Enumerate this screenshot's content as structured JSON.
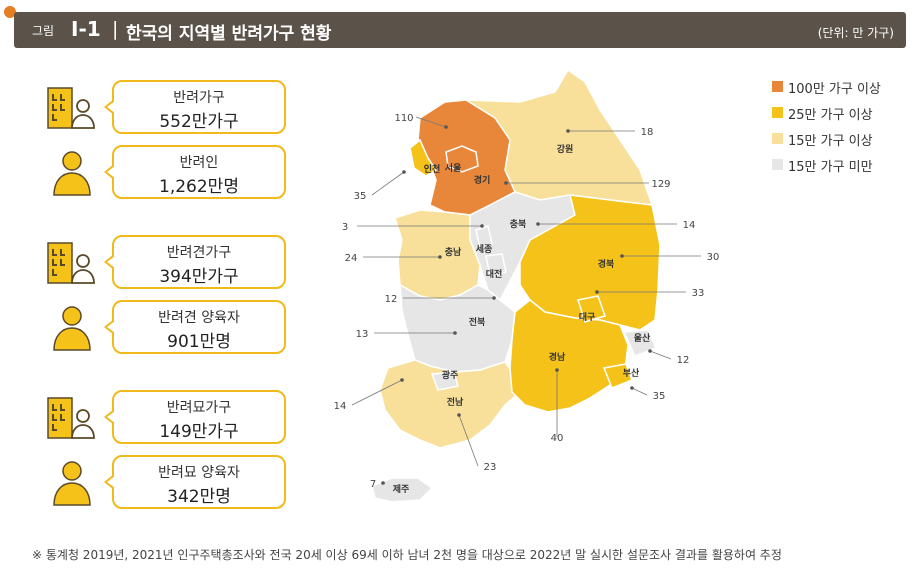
{
  "header": {
    "fig_label": "그림",
    "fig_number": "I-1",
    "separator": "|",
    "title": "한국의 지역별  반려가구 현황",
    "unit": "(단위: 만 가구)"
  },
  "stats": [
    {
      "icon": "building-person-icon",
      "label": "반려가구",
      "value": "552만가구"
    },
    {
      "icon": "person-icon",
      "label": "반려인",
      "value": "1,262만명"
    },
    {
      "icon": "building-person-icon",
      "label": "반려견가구",
      "value": "394만가구"
    },
    {
      "icon": "person-icon",
      "label": "반려견 양육자",
      "value": "901만명"
    },
    {
      "icon": "building-person-icon",
      "label": "반려묘가구",
      "value": "149만가구"
    },
    {
      "icon": "person-icon",
      "label": "반려묘 양육자",
      "value": "342만명"
    }
  ],
  "legend": [
    {
      "label": "100만 가구 이상",
      "color": "#e8873a"
    },
    {
      "label": "25만 가구 이상",
      "color": "#f5c219"
    },
    {
      "label": "15만 가구 이상",
      "color": "#f8e09a"
    },
    {
      "label": "15만 가구 미만",
      "color": "#e6e6e6"
    }
  ],
  "colors": {
    "accent": "#f2b91b",
    "header_bg": "#5b534a"
  },
  "chart_data": {
    "type": "map",
    "unit": "(단위: 만 가구)",
    "regions": [
      {
        "name": "서울",
        "value": 110,
        "category": "100만 가구 이상"
      },
      {
        "name": "경기",
        "value": 129,
        "category": "100만 가구 이상"
      },
      {
        "name": "인천",
        "value": 35,
        "category": "25만 가구 이상"
      },
      {
        "name": "강원",
        "value": 18,
        "category": "15만 가구 이상"
      },
      {
        "name": "충북",
        "value": 14,
        "category": "15만 가구 미만"
      },
      {
        "name": "세종",
        "value": 3,
        "category": "15만 가구 미만"
      },
      {
        "name": "충남",
        "value": 24,
        "category": "15만 가구 이상"
      },
      {
        "name": "대전",
        "value": 12,
        "category": "15만 가구 미만"
      },
      {
        "name": "전북",
        "value": 13,
        "category": "15만 가구 미만"
      },
      {
        "name": "경북",
        "value": 30,
        "category": "25만 가구 이상"
      },
      {
        "name": "대구",
        "value": 33,
        "category": "25만 가구 이상"
      },
      {
        "name": "울산",
        "value": 12,
        "category": "15만 가구 미만"
      },
      {
        "name": "경남",
        "value": 40,
        "category": "25만 가구 이상"
      },
      {
        "name": "부산",
        "value": 35,
        "category": "25만 가구 이상"
      },
      {
        "name": "광주",
        "value": 14,
        "category": "15만 가구 미만"
      },
      {
        "name": "전남",
        "value": 23,
        "category": "15만 가구 이상"
      },
      {
        "name": "제주",
        "value": 7,
        "category": "15만 가구 미만"
      }
    ]
  },
  "footnote": "※ 통계청 2019년, 2021년 인구주택총조사와 전국 20세 이상 69세 이하 남녀 2천 명을 대상으로 2022년 말 실시한 설문조사 결과를 활용하여 추정"
}
